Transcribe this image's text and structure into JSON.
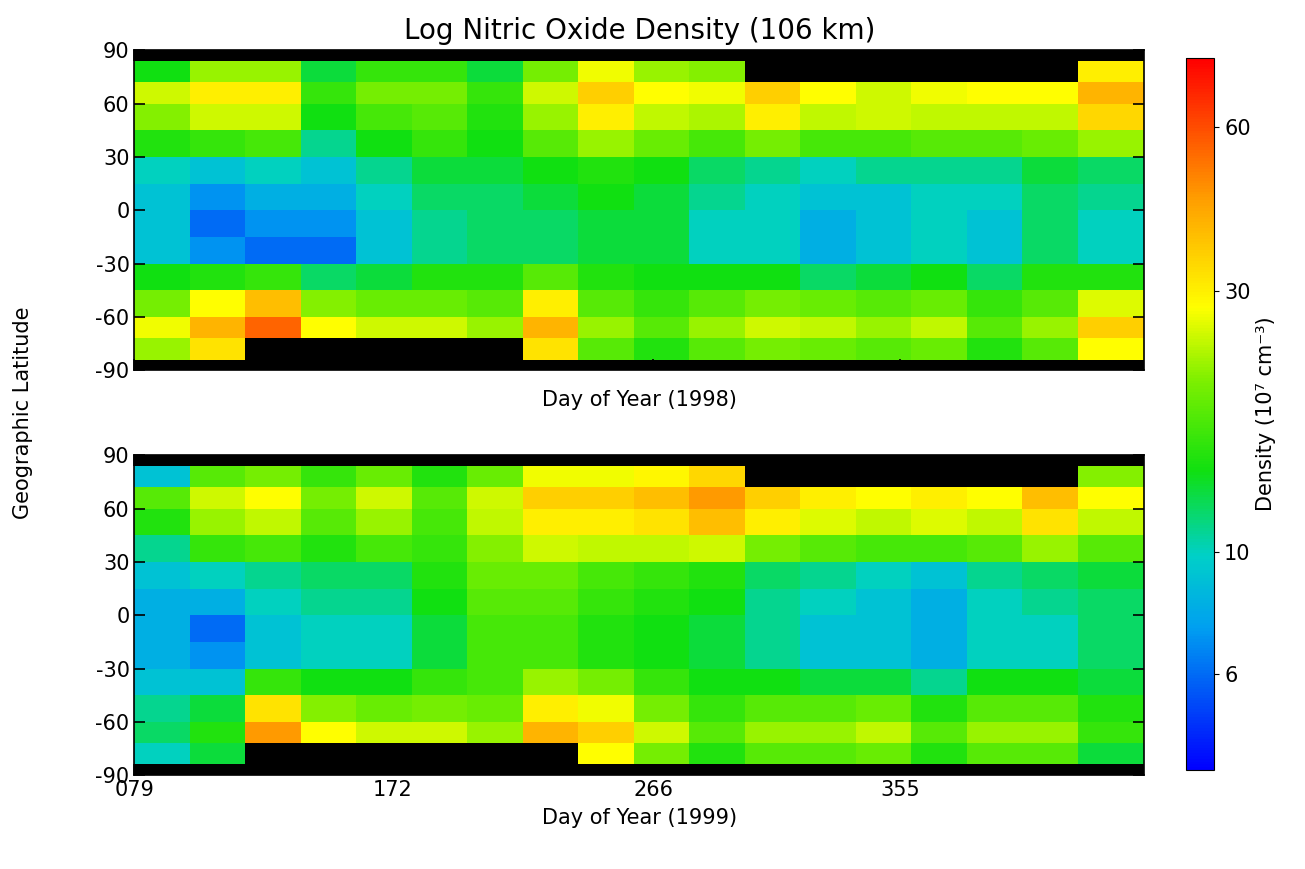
{
  "chart_data": [
    {
      "type": "heatmap",
      "title": "Log Nitric Oxide Density (106 km)",
      "y_label": "Geographic Latitude",
      "x_label": "Day of Year (1998)",
      "x_edges": [
        79,
        99,
        119,
        139,
        159,
        179,
        199,
        219,
        239,
        259,
        279,
        299,
        319,
        339,
        359,
        379,
        399,
        419,
        443
      ],
      "y_edges": [
        -90,
        -84,
        -72,
        -60,
        -45,
        -30,
        -15,
        0,
        15,
        30,
        45,
        60,
        72,
        84,
        90
      ],
      "cells_by_day": [
        [
          null,
          22,
          27,
          20,
          14,
          9,
          9,
          9,
          10,
          15,
          21,
          25,
          14,
          null
        ],
        [
          null,
          32,
          40,
          28,
          15,
          7,
          6,
          7,
          9,
          16,
          25,
          30,
          22,
          null
        ],
        [
          null,
          null,
          55,
          38,
          16,
          6,
          7,
          8,
          10,
          17,
          25,
          30,
          22,
          null
        ],
        [
          null,
          null,
          28,
          21,
          12,
          6,
          7,
          8,
          9,
          11,
          14,
          16,
          13,
          null
        ],
        [
          null,
          null,
          25,
          19,
          13,
          9,
          9,
          10,
          11,
          14,
          17,
          20,
          16,
          null
        ],
        [
          null,
          null,
          25,
          19,
          15,
          11,
          11,
          12,
          13,
          16,
          18,
          20,
          16,
          null
        ],
        [
          null,
          null,
          22,
          18,
          15,
          12,
          12,
          12,
          13,
          14,
          15,
          16,
          13,
          null
        ],
        [
          null,
          32,
          40,
          30,
          18,
          12,
          12,
          13,
          14,
          18,
          22,
          25,
          20,
          null
        ],
        [
          null,
          18,
          22,
          18,
          15,
          13,
          13,
          14,
          15,
          22,
          30,
          35,
          27,
          null
        ],
        [
          null,
          15,
          18,
          16,
          14,
          13,
          13,
          13,
          14,
          19,
          24,
          28,
          22,
          null
        ],
        [
          null,
          18,
          22,
          18,
          14,
          10,
          10,
          11,
          12,
          17,
          23,
          27,
          21,
          null
        ],
        [
          null,
          20,
          25,
          20,
          14,
          10,
          10,
          10,
          11,
          20,
          30,
          35,
          null,
          null
        ],
        [
          null,
          19,
          24,
          19,
          12,
          8,
          8,
          9,
          10,
          17,
          24,
          28,
          null,
          null
        ],
        [
          null,
          18,
          22,
          18,
          13,
          9,
          9,
          9,
          11,
          17,
          25,
          25,
          null,
          null
        ],
        [
          null,
          19,
          24,
          19,
          14,
          10,
          10,
          10,
          11,
          18,
          24,
          27,
          null,
          null
        ],
        [
          null,
          15,
          18,
          16,
          12,
          9,
          9,
          10,
          11,
          18,
          24,
          28,
          null,
          null
        ],
        [
          null,
          18,
          22,
          18,
          15,
          12,
          12,
          12,
          13,
          19,
          24,
          28,
          null,
          null
        ],
        [
          null,
          28,
          35,
          26,
          15,
          10,
          10,
          11,
          12,
          22,
          34,
          40,
          30,
          null
        ]
      ],
      "xlim": [
        79,
        443
      ],
      "ylim": [
        -90,
        90
      ],
      "xticks": [
        {
          "value": 79,
          "label": "079"
        },
        172,
        266,
        355
      ],
      "yticks": [
        -90,
        -60,
        -30,
        0,
        30,
        60,
        90
      ],
      "tick_labels": "y",
      "colorbar": {
        "label": "Density (10⁷ cm⁻³)",
        "range": [
          4,
          80
        ],
        "ticks": [
          6,
          10,
          30,
          60
        ],
        "log": true
      }
    },
    {
      "type": "heatmap",
      "x_label": "Day of Year (1999)",
      "x_edges": [
        79,
        99,
        119,
        139,
        159,
        179,
        199,
        219,
        239,
        259,
        279,
        299,
        319,
        339,
        359,
        379,
        399,
        419,
        443
      ],
      "y_edges": [
        -90,
        -84,
        -72,
        -60,
        -45,
        -30,
        -15,
        0,
        15,
        30,
        45,
        60,
        72,
        84,
        90
      ],
      "cells_by_day": [
        [
          null,
          10,
          12,
          11,
          9,
          8,
          8,
          8,
          9,
          11,
          15,
          18,
          9,
          null
        ],
        [
          null,
          13,
          15,
          13,
          9,
          7,
          6,
          8,
          10,
          16,
          22,
          25,
          18,
          null
        ],
        [
          null,
          null,
          45,
          32,
          16,
          9,
          9,
          10,
          11,
          17,
          24,
          28,
          20,
          null
        ],
        [
          null,
          null,
          28,
          21,
          14,
          10,
          10,
          11,
          12,
          15,
          18,
          20,
          16,
          null
        ],
        [
          null,
          null,
          25,
          19,
          14,
          10,
          10,
          11,
          12,
          17,
          22,
          25,
          19,
          null
        ],
        [
          null,
          null,
          25,
          20,
          16,
          13,
          13,
          14,
          15,
          16,
          17,
          18,
          15,
          null
        ],
        [
          null,
          null,
          22,
          19,
          17,
          17,
          17,
          18,
          19,
          21,
          24,
          25,
          19,
          null
        ],
        [
          null,
          null,
          40,
          30,
          22,
          17,
          17,
          18,
          19,
          25,
          30,
          35,
          27,
          null
        ],
        [
          null,
          28,
          35,
          27,
          20,
          15,
          15,
          16,
          17,
          24,
          30,
          35,
          27,
          null
        ],
        [
          null,
          20,
          25,
          20,
          16,
          14,
          14,
          15,
          16,
          24,
          32,
          38,
          29,
          null
        ],
        [
          null,
          15,
          18,
          16,
          14,
          13,
          13,
          14,
          15,
          25,
          38,
          45,
          34,
          null
        ],
        [
          null,
          18,
          22,
          18,
          14,
          11,
          11,
          11,
          12,
          20,
          30,
          35,
          null,
          null
        ],
        [
          null,
          18,
          22,
          18,
          13,
          9,
          9,
          10,
          11,
          18,
          26,
          30,
          null,
          null
        ],
        [
          null,
          19,
          24,
          19,
          13,
          9,
          9,
          9,
          10,
          17,
          24,
          28,
          null,
          null
        ],
        [
          null,
          15,
          18,
          15,
          11,
          8,
          8,
          8,
          9,
          17,
          26,
          30,
          null,
          null
        ],
        [
          null,
          18,
          22,
          18,
          14,
          10,
          10,
          10,
          11,
          18,
          24,
          28,
          null,
          null
        ],
        [
          null,
          18,
          22,
          18,
          14,
          10,
          10,
          11,
          12,
          22,
          32,
          38,
          null,
          null
        ],
        [
          null,
          13,
          16,
          15,
          13,
          12,
          12,
          12,
          13,
          18,
          24,
          28,
          21,
          null
        ]
      ],
      "xlim": [
        79,
        443
      ],
      "ylim": [
        -90,
        90
      ],
      "xticks": [
        {
          "value": 79,
          "label": "079"
        },
        172,
        266,
        355
      ],
      "yticks": [
        -90,
        -60,
        -30,
        0,
        30,
        60,
        90
      ]
    }
  ]
}
